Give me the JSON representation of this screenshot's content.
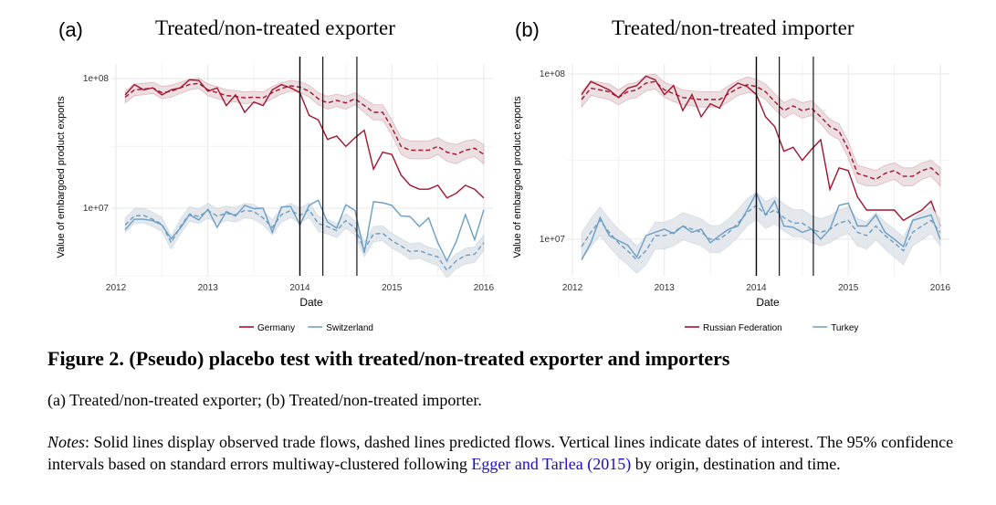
{
  "figure": {
    "title": "Figure 2. (Pseudo) placebo test with treated/non-treated exporter and importers",
    "subcaption": "(a) Treated/non-treated exporter; (b) Treated/non-treated importer.",
    "notes_label": "Notes",
    "notes_text_1": ": Solid lines display observed trade flows, dashed lines predicted flows. Vertical lines indicate dates of interest. The 95% confidence intervals based on standard errors multiway-clustered following ",
    "notes_citation": "Egger and Tarlea (2015)",
    "notes_text_2": " by origin, destination and time."
  },
  "colors": {
    "red": "#a3142f",
    "blue": "#6a9ec5",
    "band": "#d9d9d9"
  },
  "chart_data": [
    {
      "type": "line",
      "letter": "(a)",
      "title": "Treated/non-treated exporter",
      "xlabel": "Date",
      "ylabel": "Value of embargoed product exports",
      "y_scale": "log",
      "xlim": [
        2011.95,
        2016.1
      ],
      "ylim": [
        3000000,
        130000000
      ],
      "x_ticks": [
        2012,
        2013,
        2014,
        2015,
        2016
      ],
      "x_tick_labels": [
        "2012",
        "2013",
        "2014",
        "2015",
        "2016"
      ],
      "y_ticks": [
        10000000,
        100000000
      ],
      "y_tick_labels": [
        "1e+07",
        "1e+08"
      ],
      "vlines": [
        2014.0,
        2014.25,
        2014.62
      ],
      "grid": true,
      "legend_position": "bottom",
      "legend": [
        "Germany",
        "Switzerland"
      ],
      "x": [
        2012.1,
        2012.2,
        2012.3,
        2012.4,
        2012.5,
        2012.6,
        2012.7,
        2012.8,
        2012.9,
        2013.0,
        2013.1,
        2013.2,
        2013.3,
        2013.4,
        2013.5,
        2013.6,
        2013.7,
        2013.8,
        2013.9,
        2014.0,
        2014.1,
        2014.2,
        2014.3,
        2014.4,
        2014.5,
        2014.6,
        2014.7,
        2014.8,
        2014.9,
        2015.0,
        2015.1,
        2015.2,
        2015.3,
        2015.4,
        2015.5,
        2015.6,
        2015.7,
        2015.8,
        2015.9,
        2016.0
      ],
      "series": [
        {
          "name": "Germany",
          "color": "red",
          "observed": [
            75,
            90,
            82,
            85,
            75,
            82,
            85,
            98,
            97,
            80,
            85,
            62,
            75,
            55,
            66,
            62,
            82,
            90,
            85,
            78,
            52,
            48,
            34,
            36,
            30,
            35,
            40,
            20,
            27,
            26,
            18,
            15,
            14,
            14,
            15,
            12,
            13,
            15,
            14,
            12
          ],
          "predicted": [
            72,
            82,
            83,
            85,
            78,
            80,
            85,
            90,
            92,
            82,
            78,
            74,
            73,
            71,
            72,
            71,
            78,
            84,
            88,
            86,
            80,
            70,
            65,
            68,
            65,
            70,
            62,
            55,
            55,
            42,
            30,
            28,
            28,
            28,
            30,
            27,
            26,
            28,
            29,
            26
          ],
          "ci_low": [
            65,
            74,
            75,
            77,
            70,
            72,
            77,
            82,
            84,
            74,
            70,
            67,
            66,
            64,
            65,
            64,
            70,
            76,
            80,
            78,
            72,
            63,
            58,
            61,
            58,
            63,
            55,
            48,
            48,
            37,
            26,
            24,
            24,
            24,
            26,
            23,
            22,
            24,
            25,
            22
          ],
          "ci_high": [
            80,
            91,
            92,
            94,
            87,
            89,
            94,
            99,
            101,
            91,
            87,
            82,
            81,
            79,
            80,
            79,
            87,
            93,
            97,
            95,
            89,
            78,
            73,
            76,
            73,
            78,
            70,
            63,
            63,
            48,
            35,
            33,
            33,
            33,
            35,
            32,
            31,
            33,
            34,
            31
          ]
        },
        {
          "name": "Switzerland",
          "color": "blue",
          "observed": [
            6.8,
            8.2,
            8.2,
            8.0,
            7.4,
            5.8,
            7.0,
            8.9,
            8.1,
            9.8,
            7.1,
            9.4,
            8.7,
            10.5,
            9.9,
            10.0,
            6.5,
            10.2,
            10.3,
            7.4,
            10.5,
            11.5,
            7.8,
            7.0,
            10.6,
            9.6,
            4.5,
            11.2,
            11.0,
            10.5,
            8.7,
            8.6,
            7.2,
            8.4,
            5.4,
            3.9,
            5.5,
            8.9,
            5.7,
            9.7
          ],
          "predicted": [
            7.4,
            8.7,
            8.8,
            8.2,
            7.5,
            5.4,
            7.2,
            9.0,
            8.6,
            9.6,
            8.7,
            9.1,
            8.9,
            9.6,
            9.4,
            8.4,
            7.1,
            8.9,
            9.6,
            8.8,
            9.7,
            7.6,
            7.2,
            6.7,
            8.0,
            7.0,
            4.8,
            6.3,
            6.4,
            5.6,
            5.1,
            4.6,
            4.7,
            4.4,
            4.2,
            3.3,
            3.9,
            4.3,
            4.4,
            5.4
          ],
          "ci_low": [
            6.5,
            7.6,
            7.7,
            7.2,
            6.6,
            4.8,
            6.3,
            7.9,
            7.6,
            8.4,
            7.6,
            8.0,
            7.8,
            8.4,
            8.2,
            7.4,
            6.2,
            7.8,
            8.4,
            7.7,
            8.5,
            6.6,
            6.3,
            5.9,
            7.0,
            6.2,
            4.2,
            5.5,
            5.6,
            4.9,
            4.5,
            4.0,
            4.1,
            3.8,
            3.6,
            2.9,
            3.4,
            3.7,
            3.8,
            4.7
          ],
          "ci_high": [
            8.4,
            9.9,
            10.0,
            9.3,
            8.5,
            6.1,
            8.2,
            10.3,
            9.8,
            10.9,
            9.9,
            10.4,
            10.1,
            10.9,
            10.7,
            9.6,
            8.1,
            10.1,
            10.9,
            10.0,
            11.0,
            8.7,
            8.2,
            7.6,
            9.1,
            8.0,
            5.5,
            7.2,
            7.3,
            6.4,
            5.8,
            5.3,
            5.4,
            5.0,
            4.8,
            3.8,
            4.4,
            4.9,
            5.0,
            6.2
          ]
        }
      ]
    },
    {
      "type": "line",
      "letter": "(b)",
      "title": "Treated/non-treated importer",
      "xlabel": "Date",
      "ylabel": "Value of embargoed product exports",
      "y_scale": "log",
      "xlim": [
        2011.95,
        2016.1
      ],
      "ylim": [
        6000000,
        115000000
      ],
      "x_ticks": [
        2012,
        2013,
        2014,
        2015,
        2016
      ],
      "x_tick_labels": [
        "2012",
        "2013",
        "2014",
        "2015",
        "2016"
      ],
      "y_ticks": [
        10000000,
        100000000
      ],
      "y_tick_labels": [
        "1e+07",
        "1e+08"
      ],
      "vlines": [
        2014.0,
        2014.25,
        2014.62
      ],
      "grid": true,
      "legend_position": "bottom",
      "legend": [
        "Russian Federation",
        "Turkey"
      ],
      "x": [
        2012.1,
        2012.2,
        2012.3,
        2012.4,
        2012.5,
        2012.6,
        2012.7,
        2012.8,
        2012.9,
        2013.0,
        2013.1,
        2013.2,
        2013.3,
        2013.4,
        2013.5,
        2013.6,
        2013.7,
        2013.8,
        2013.9,
        2014.0,
        2014.1,
        2014.2,
        2014.3,
        2014.4,
        2014.5,
        2014.6,
        2014.7,
        2014.8,
        2014.9,
        2015.0,
        2015.1,
        2015.2,
        2015.3,
        2015.4,
        2015.5,
        2015.6,
        2015.7,
        2015.8,
        2015.9,
        2016.0
      ],
      "series": [
        {
          "name": "Russian Federation",
          "color": "red",
          "observed": [
            75,
            90,
            85,
            80,
            72,
            82,
            85,
            97,
            92,
            75,
            85,
            60,
            75,
            55,
            66,
            62,
            80,
            88,
            84,
            75,
            55,
            48,
            34,
            36,
            30,
            35,
            40,
            20,
            27,
            26,
            18,
            15,
            15,
            15,
            15,
            13,
            14,
            15,
            17,
            12
          ],
          "predicted": [
            70,
            82,
            80,
            78,
            72,
            78,
            80,
            88,
            90,
            80,
            76,
            72,
            71,
            70,
            70,
            70,
            76,
            82,
            86,
            84,
            78,
            68,
            60,
            64,
            60,
            62,
            55,
            48,
            45,
            35,
            25,
            24,
            23,
            25,
            26,
            24,
            24,
            26,
            27,
            24
          ],
          "ci_low": [
            63,
            74,
            72,
            70,
            65,
            70,
            72,
            79,
            81,
            72,
            68,
            65,
            64,
            63,
            63,
            63,
            68,
            74,
            77,
            76,
            70,
            61,
            54,
            58,
            54,
            56,
            50,
            43,
            40,
            31,
            22,
            21,
            21,
            22,
            23,
            21,
            21,
            23,
            24,
            21
          ],
          "ci_high": [
            78,
            91,
            89,
            87,
            80,
            87,
            89,
            98,
            100,
            89,
            85,
            80,
            79,
            78,
            78,
            78,
            85,
            91,
            96,
            93,
            87,
            76,
            67,
            71,
            67,
            69,
            61,
            53,
            50,
            39,
            28,
            27,
            26,
            28,
            29,
            27,
            27,
            29,
            30,
            27
          ]
        },
        {
          "name": "Turkey",
          "color": "blue",
          "observed": [
            7.5,
            9.5,
            13.5,
            10.5,
            9.8,
            9.2,
            7.8,
            10.5,
            11.0,
            11.5,
            10.8,
            12.0,
            11.0,
            11.5,
            9.5,
            10.5,
            11.5,
            12.0,
            15.0,
            19.0,
            14.0,
            17.0,
            12.0,
            11.8,
            11.0,
            11.5,
            10.0,
            11.5,
            16.0,
            16.5,
            12.0,
            12.0,
            14.0,
            11.0,
            10.0,
            9.0,
            13.0,
            13.5,
            14.0,
            10.0
          ],
          "predicted": [
            9.0,
            11.0,
            13.0,
            11.0,
            9.5,
            8.5,
            7.5,
            8.5,
            10.5,
            10.5,
            11.0,
            12.0,
            11.5,
            11.0,
            10.0,
            10.0,
            11.0,
            12.5,
            14.5,
            16.0,
            14.0,
            15.0,
            13.5,
            12.5,
            12.5,
            11.5,
            11.0,
            11.5,
            12.5,
            13.0,
            11.0,
            10.5,
            12.0,
            10.5,
            9.5,
            8.5,
            11.0,
            12.0,
            13.0,
            11.0
          ],
          "ci_low": [
            7.5,
            9.0,
            10.5,
            9.0,
            7.8,
            7.0,
            6.2,
            7.0,
            8.7,
            8.7,
            9.1,
            9.9,
            9.5,
            9.1,
            8.3,
            8.3,
            9.1,
            10.3,
            12.0,
            13.2,
            11.6,
            12.4,
            11.2,
            10.3,
            10.3,
            9.5,
            9.1,
            9.5,
            10.3,
            10.8,
            9.1,
            8.7,
            9.9,
            8.7,
            7.8,
            7.0,
            9.1,
            9.9,
            10.8,
            9.1
          ],
          "ci_high": [
            10.9,
            13.3,
            15.7,
            13.3,
            11.5,
            10.3,
            9.1,
            10.3,
            12.7,
            12.7,
            13.3,
            14.5,
            13.9,
            13.3,
            12.1,
            12.1,
            13.3,
            15.1,
            17.5,
            19.3,
            16.9,
            18.1,
            16.3,
            15.1,
            15.1,
            13.9,
            13.3,
            13.9,
            15.1,
            15.7,
            13.3,
            12.7,
            14.5,
            12.7,
            11.5,
            10.3,
            13.3,
            14.5,
            15.7,
            13.3
          ]
        }
      ]
    }
  ]
}
